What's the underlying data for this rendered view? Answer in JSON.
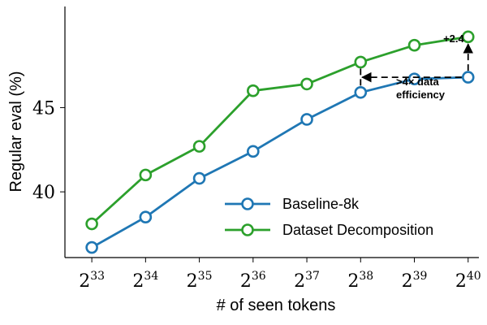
{
  "chart_data": {
    "type": "line",
    "xlabel": "# of seen tokens",
    "ylabel": "Regular eval (%)",
    "x": [
      33,
      34,
      35,
      36,
      37,
      38,
      39,
      40
    ],
    "x_tick_base": "2",
    "x_tick_exponents": [
      "33",
      "34",
      "35",
      "36",
      "37",
      "38",
      "39",
      "40"
    ],
    "x_scale": "log2",
    "xlim": [
      32.5,
      40.2
    ],
    "yticks": [
      40,
      45
    ],
    "ylim": [
      36.1,
      51.0
    ],
    "grid": false,
    "legend_placement": "lower-right",
    "series": [
      {
        "name": "Baseline-8k",
        "color": "#1f77b4",
        "values": [
          36.7,
          38.5,
          40.8,
          42.4,
          44.3,
          45.9,
          46.7,
          46.8
        ]
      },
      {
        "name": "Dataset Decomposition",
        "color": "#2ca02c",
        "values": [
          38.1,
          41.0,
          42.7,
          46.0,
          46.4,
          47.7,
          48.7,
          49.2
        ]
      }
    ],
    "annotations": {
      "gain_label": "+2.4",
      "efficiency_line1": ">4× data",
      "efficiency_line2": "efficiency",
      "efficiency_from_x": 40,
      "efficiency_to_x": 38,
      "efficiency_y": 46.8
    }
  }
}
